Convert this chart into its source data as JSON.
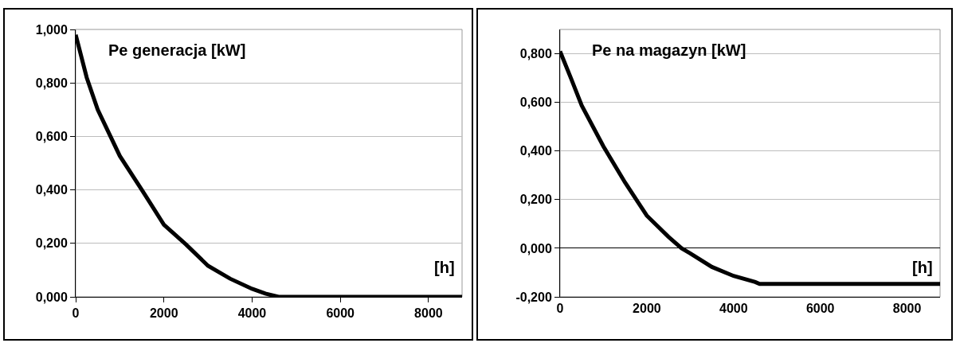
{
  "chart_data": [
    {
      "type": "line",
      "ylabel": "Pe generacja [kW]",
      "xlabel": "[h]",
      "x": [
        0,
        250,
        500,
        1000,
        1500,
        2000,
        2500,
        3000,
        3500,
        4000,
        4300,
        4600,
        5000,
        6000,
        7000,
        8000,
        8760
      ],
      "series": [
        {
          "color": "#000000",
          "values": [
            0.98,
            0.82,
            0.7,
            0.527,
            0.4,
            0.27,
            0.196,
            0.116,
            0.068,
            0.03,
            0.012,
            0,
            0,
            0,
            0,
            0,
            0
          ]
        }
      ],
      "xlim": [
        0,
        8760
      ],
      "xticks": [
        0,
        2000,
        4000,
        6000,
        8000
      ],
      "ylim": [
        0,
        1
      ],
      "yticks": [
        {
          "value": 0,
          "label": "0,000"
        },
        {
          "value": 0.2,
          "label": "0,200"
        },
        {
          "value": 0.4,
          "label": "0,400"
        },
        {
          "value": 0.6,
          "label": "0,600"
        },
        {
          "value": 0.8,
          "label": "0,800"
        },
        {
          "value": 1,
          "label": "1,000"
        }
      ],
      "grid": "y",
      "marker": "none",
      "line_style": "solid"
    },
    {
      "type": "line",
      "ylabel": "Pe na magazyn [kW]",
      "xlabel": "[h]",
      "x": [
        0,
        250,
        500,
        1000,
        1500,
        2000,
        2500,
        2800,
        3000,
        3500,
        4000,
        4500,
        4600,
        5000,
        6000,
        7000,
        8000,
        8760
      ],
      "series": [
        {
          "color": "#000000",
          "values": [
            0.81,
            0.7,
            0.587,
            0.419,
            0.27,
            0.134,
            0.047,
            0,
            -0.021,
            -0.077,
            -0.114,
            -0.139,
            -0.147,
            -0.147,
            -0.147,
            -0.147,
            -0.147,
            -0.147
          ]
        }
      ],
      "xlim": [
        0,
        8760
      ],
      "xticks": [
        0,
        2000,
        4000,
        6000,
        8000
      ],
      "ylim": [
        -0.2,
        0.9
      ],
      "yticks": [
        {
          "value": -0.2,
          "label": "-0,200"
        },
        {
          "value": 0,
          "label": "0,000"
        },
        {
          "value": 0.2,
          "label": "0,200"
        },
        {
          "value": 0.4,
          "label": "0,400"
        },
        {
          "value": 0.6,
          "label": "0,600"
        },
        {
          "value": 0.8,
          "label": "0,800"
        }
      ],
      "grid": "y",
      "marker": "none",
      "line_style": "solid"
    }
  ]
}
